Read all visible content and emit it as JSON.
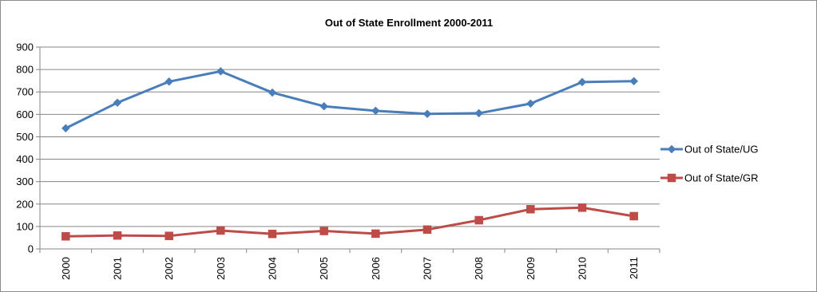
{
  "chart_data": {
    "type": "line",
    "title": "Out of State Enrollment 2000-2011",
    "xlabel": "",
    "ylabel": "",
    "categories": [
      "2000",
      "2001",
      "2002",
      "2003",
      "2004",
      "2005",
      "2006",
      "2007",
      "2008",
      "2009",
      "2010",
      "2011"
    ],
    "ylim": [
      0,
      900
    ],
    "yticks": [
      0,
      100,
      200,
      300,
      400,
      500,
      600,
      700,
      800,
      900
    ],
    "grid": true,
    "legend_position": "right",
    "series": [
      {
        "name": "Out of State/UG",
        "color": "#4a7ebb",
        "marker": "diamond",
        "values": [
          538,
          652,
          746,
          792,
          697,
          636,
          616,
          602,
          605,
          648,
          744,
          748
        ]
      },
      {
        "name": "Out of State/GR",
        "color": "#be4b48",
        "marker": "square",
        "values": [
          56,
          60,
          58,
          82,
          67,
          80,
          68,
          86,
          128,
          177,
          184,
          146
        ]
      }
    ]
  }
}
